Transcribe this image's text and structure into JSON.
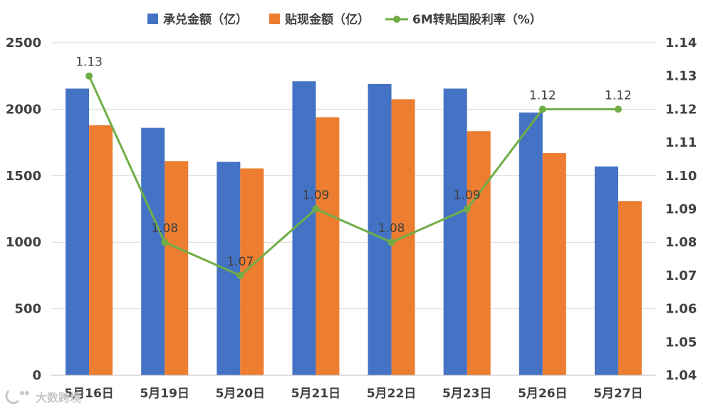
{
  "chart_data": {
    "type": "bar",
    "categories": [
      "5月16日",
      "5月19日",
      "5月20日",
      "5月21日",
      "5月22日",
      "5月23日",
      "5月26日",
      "5月27日"
    ],
    "series": [
      {
        "name": "承兑金额（亿）",
        "type": "bar",
        "axis": "left",
        "color": "#4472C4",
        "values": [
          2155,
          1860,
          1605,
          2210,
          2190,
          2155,
          1975,
          1570
        ]
      },
      {
        "name": "贴现金额（亿）",
        "type": "bar",
        "axis": "left",
        "color": "#ED7D31",
        "values": [
          1880,
          1610,
          1555,
          1940,
          2075,
          1835,
          1670,
          1310
        ]
      },
      {
        "name": "6M转贴国股利率（%）",
        "type": "line",
        "axis": "right",
        "color": "#70AD47",
        "values": [
          1.13,
          1.08,
          1.07,
          1.09,
          1.08,
          1.09,
          1.12,
          1.12
        ],
        "labels": [
          "1.13",
          "1.08",
          "1.07",
          "1.09",
          "1.08",
          "1.09",
          "1.12",
          "1.12"
        ]
      }
    ],
    "y_left": {
      "range": [
        0,
        2500
      ],
      "ticks": [
        "0",
        "500",
        "1000",
        "1500",
        "2000",
        "2500"
      ]
    },
    "y_right": {
      "range": [
        1.04,
        1.14
      ],
      "ticks": [
        "1.04",
        "1.05",
        "1.06",
        "1.07",
        "1.08",
        "1.09",
        "1.10",
        "1.11",
        "1.12",
        "1.13",
        "1.14"
      ]
    },
    "grid": true,
    "legend_position": "top",
    "watermark": "大数跨境"
  }
}
